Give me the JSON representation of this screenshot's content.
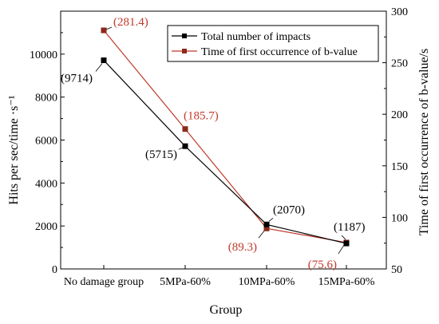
{
  "chart_data": {
    "type": "line",
    "xlabel": "Group",
    "ylabel_left": "Hits per sec/time ·s⁻¹",
    "ylabel_right": "Time of first occurrence of b-value/s",
    "categories": [
      "No damage group",
      "5MPa-60%",
      "10MPa-60%",
      "15MPa-60%"
    ],
    "ylim_left": [
      0,
      12000
    ],
    "yticks_left": [
      "0",
      "2000",
      "4000",
      "6000",
      "8000",
      "10000"
    ],
    "ylim_right": [
      50,
      300
    ],
    "yticks_right": [
      "50",
      "100",
      "150",
      "200",
      "250",
      "300"
    ],
    "grid": false,
    "legend_position": "top-right",
    "series": [
      {
        "name": "Total number of impacts",
        "axis": "left",
        "color": "#000000",
        "marker": "square",
        "values": [
          9714,
          5715,
          2070,
          1187
        ],
        "labels": [
          "(9714)",
          "(5715)",
          "(2070)",
          "(1187)"
        ]
      },
      {
        "name": "Time of first occurrence of b-value",
        "axis": "right",
        "color": "#c0392b",
        "marker": "square",
        "values": [
          281.4,
          185.7,
          89.3,
          75.6
        ],
        "labels": [
          "(281.4)",
          "(185.7)",
          "(89.3)",
          "(75.6)"
        ]
      }
    ]
  }
}
